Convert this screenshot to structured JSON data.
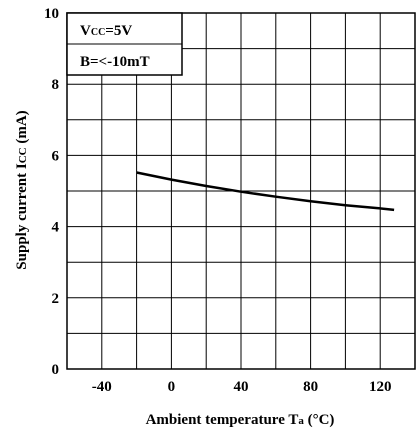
{
  "chart_data": {
    "type": "line",
    "xlabel": {
      "main": "Ambient temperature T",
      "sub": "a",
      "unit": " (°C)"
    },
    "ylabel": {
      "main": "Supply current I",
      "sub": "CC",
      "unit": " (mA)"
    },
    "xlim": [
      -60,
      140
    ],
    "ylim": [
      0,
      10
    ],
    "x_ticks": [
      -40,
      0,
      40,
      80,
      120
    ],
    "x_tick_labels": [
      "-40",
      "0",
      "40",
      "80",
      "120"
    ],
    "y_ticks": [
      0,
      2,
      4,
      6,
      8,
      10
    ],
    "y_tick_labels": [
      "0",
      "2",
      "4",
      "6",
      "8",
      "10"
    ],
    "x_grid_step": 20,
    "y_grid_step": 1,
    "grid": true,
    "annotations": {
      "vcc": {
        "main": "V",
        "sub": "CC",
        "rest": "=5V"
      },
      "b": "B=<-10mT"
    },
    "annotation_position": "top-left",
    "series": [
      {
        "x": [
          -20,
          0,
          20,
          40,
          60,
          80,
          100,
          120,
          128
        ],
        "y": [
          5.52,
          5.32,
          5.14,
          4.98,
          4.84,
          4.71,
          4.6,
          4.51,
          4.47
        ]
      }
    ]
  }
}
